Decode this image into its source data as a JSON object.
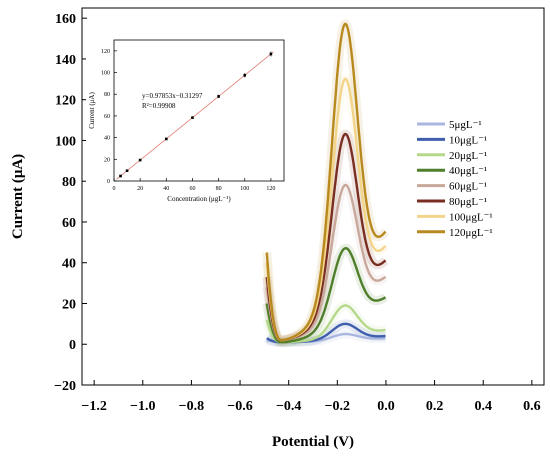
{
  "chart_data": [
    {
      "type": "line",
      "xlabel": "Potential (V)",
      "ylabel": "Current (μA)",
      "xlim": [
        -1.25,
        0.65
      ],
      "ylim": [
        -20,
        165
      ],
      "xticks": [
        "−1.2",
        "−1.0",
        "−0.8",
        "−0.6",
        "−0.4",
        "−0.2",
        "0.0",
        "0.2",
        "0.4",
        "0.6"
      ],
      "xtick_values": [
        -1.2,
        -1.0,
        -0.8,
        -0.6,
        -0.4,
        -0.2,
        0.0,
        0.2,
        0.4,
        0.6
      ],
      "yticks": [
        "−20",
        "0",
        "20",
        "40",
        "60",
        "80",
        "100",
        "120",
        "140",
        "160"
      ],
      "ytick_values": [
        -20,
        0,
        20,
        40,
        60,
        80,
        100,
        120,
        140,
        160
      ],
      "legend_position": "right",
      "series": [
        {
          "name": "5μgL⁻¹",
          "color": "#a9b7e0",
          "start": 2,
          "valley": 1,
          "peak": 5,
          "end": 3
        },
        {
          "name": "10μgL⁻¹",
          "color": "#3f5fad",
          "start": 3,
          "valley": 1,
          "peak": 10,
          "end": 4
        },
        {
          "name": "20μgL⁻¹",
          "color": "#b5d88a",
          "start": 12,
          "valley": 1,
          "peak": 19,
          "end": 7
        },
        {
          "name": "40μgL⁻¹",
          "color": "#4f7f2a",
          "start": 20,
          "valley": 1,
          "peak": 47,
          "end": 23
        },
        {
          "name": "60μgL⁻¹",
          "color": "#c8a89a",
          "start": 28,
          "valley": 2,
          "peak": 78,
          "end": 33
        },
        {
          "name": "80μgL⁻¹",
          "color": "#7a2e22",
          "start": 33,
          "valley": 2,
          "peak": 103,
          "end": 41
        },
        {
          "name": "100μgL⁻¹",
          "color": "#f2d58a",
          "start": 40,
          "valley": 2,
          "peak": 130,
          "end": 48
        },
        {
          "name": "120μgL⁻¹",
          "color": "#b8891e",
          "start": 45,
          "valley": 2,
          "peak": 157,
          "end": 55
        }
      ]
    },
    {
      "type": "scatter",
      "xlabel": "Concentration (μgL⁻¹)",
      "ylabel": "Current (μA)",
      "xlim": [
        0,
        130
      ],
      "ylim": [
        0,
        130
      ],
      "xticks": [
        "0",
        "20",
        "40",
        "60",
        "80",
        "100",
        "120"
      ],
      "yticks": [
        "0",
        "20",
        "40",
        "60",
        "80",
        "100",
        "120"
      ],
      "equation": "y=0.97853x−0.31297",
      "r_squared": "R²=0.99908",
      "points": [
        {
          "x": 5,
          "y": 4.6
        },
        {
          "x": 10,
          "y": 9.5
        },
        {
          "x": 20,
          "y": 19.3
        },
        {
          "x": 40,
          "y": 38.8
        },
        {
          "x": 60,
          "y": 58.4
        },
        {
          "x": 80,
          "y": 78.0
        },
        {
          "x": 100,
          "y": 97.5
        },
        {
          "x": 120,
          "y": 117.1
        }
      ],
      "fit": {
        "slope": 0.97853,
        "intercept": -0.31297
      }
    }
  ]
}
